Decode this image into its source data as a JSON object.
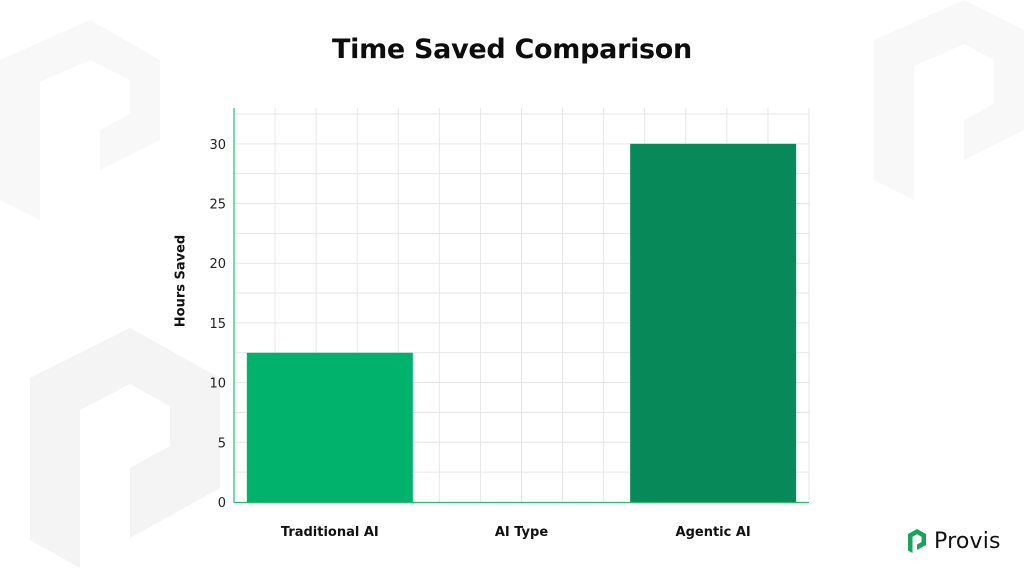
{
  "chart_data": {
    "type": "bar",
    "title": "Time Saved Comparison",
    "xlabel": "AI Type",
    "ylabel": "Hours Saved",
    "categories": [
      "Traditional AI",
      "AI Type",
      "Agentic AI"
    ],
    "values": [
      12.5,
      null,
      30
    ],
    "bar_colors": [
      "#00b26b",
      null,
      "#08895a"
    ],
    "ylim": [
      0,
      33
    ],
    "yticks": [
      0,
      5,
      10,
      15,
      20,
      25,
      30
    ],
    "grid": true,
    "axis_color": "#2eb872"
  },
  "brand": {
    "name": "Provis",
    "logo_icon": "provis-logo-icon",
    "color": "#1aa260"
  }
}
